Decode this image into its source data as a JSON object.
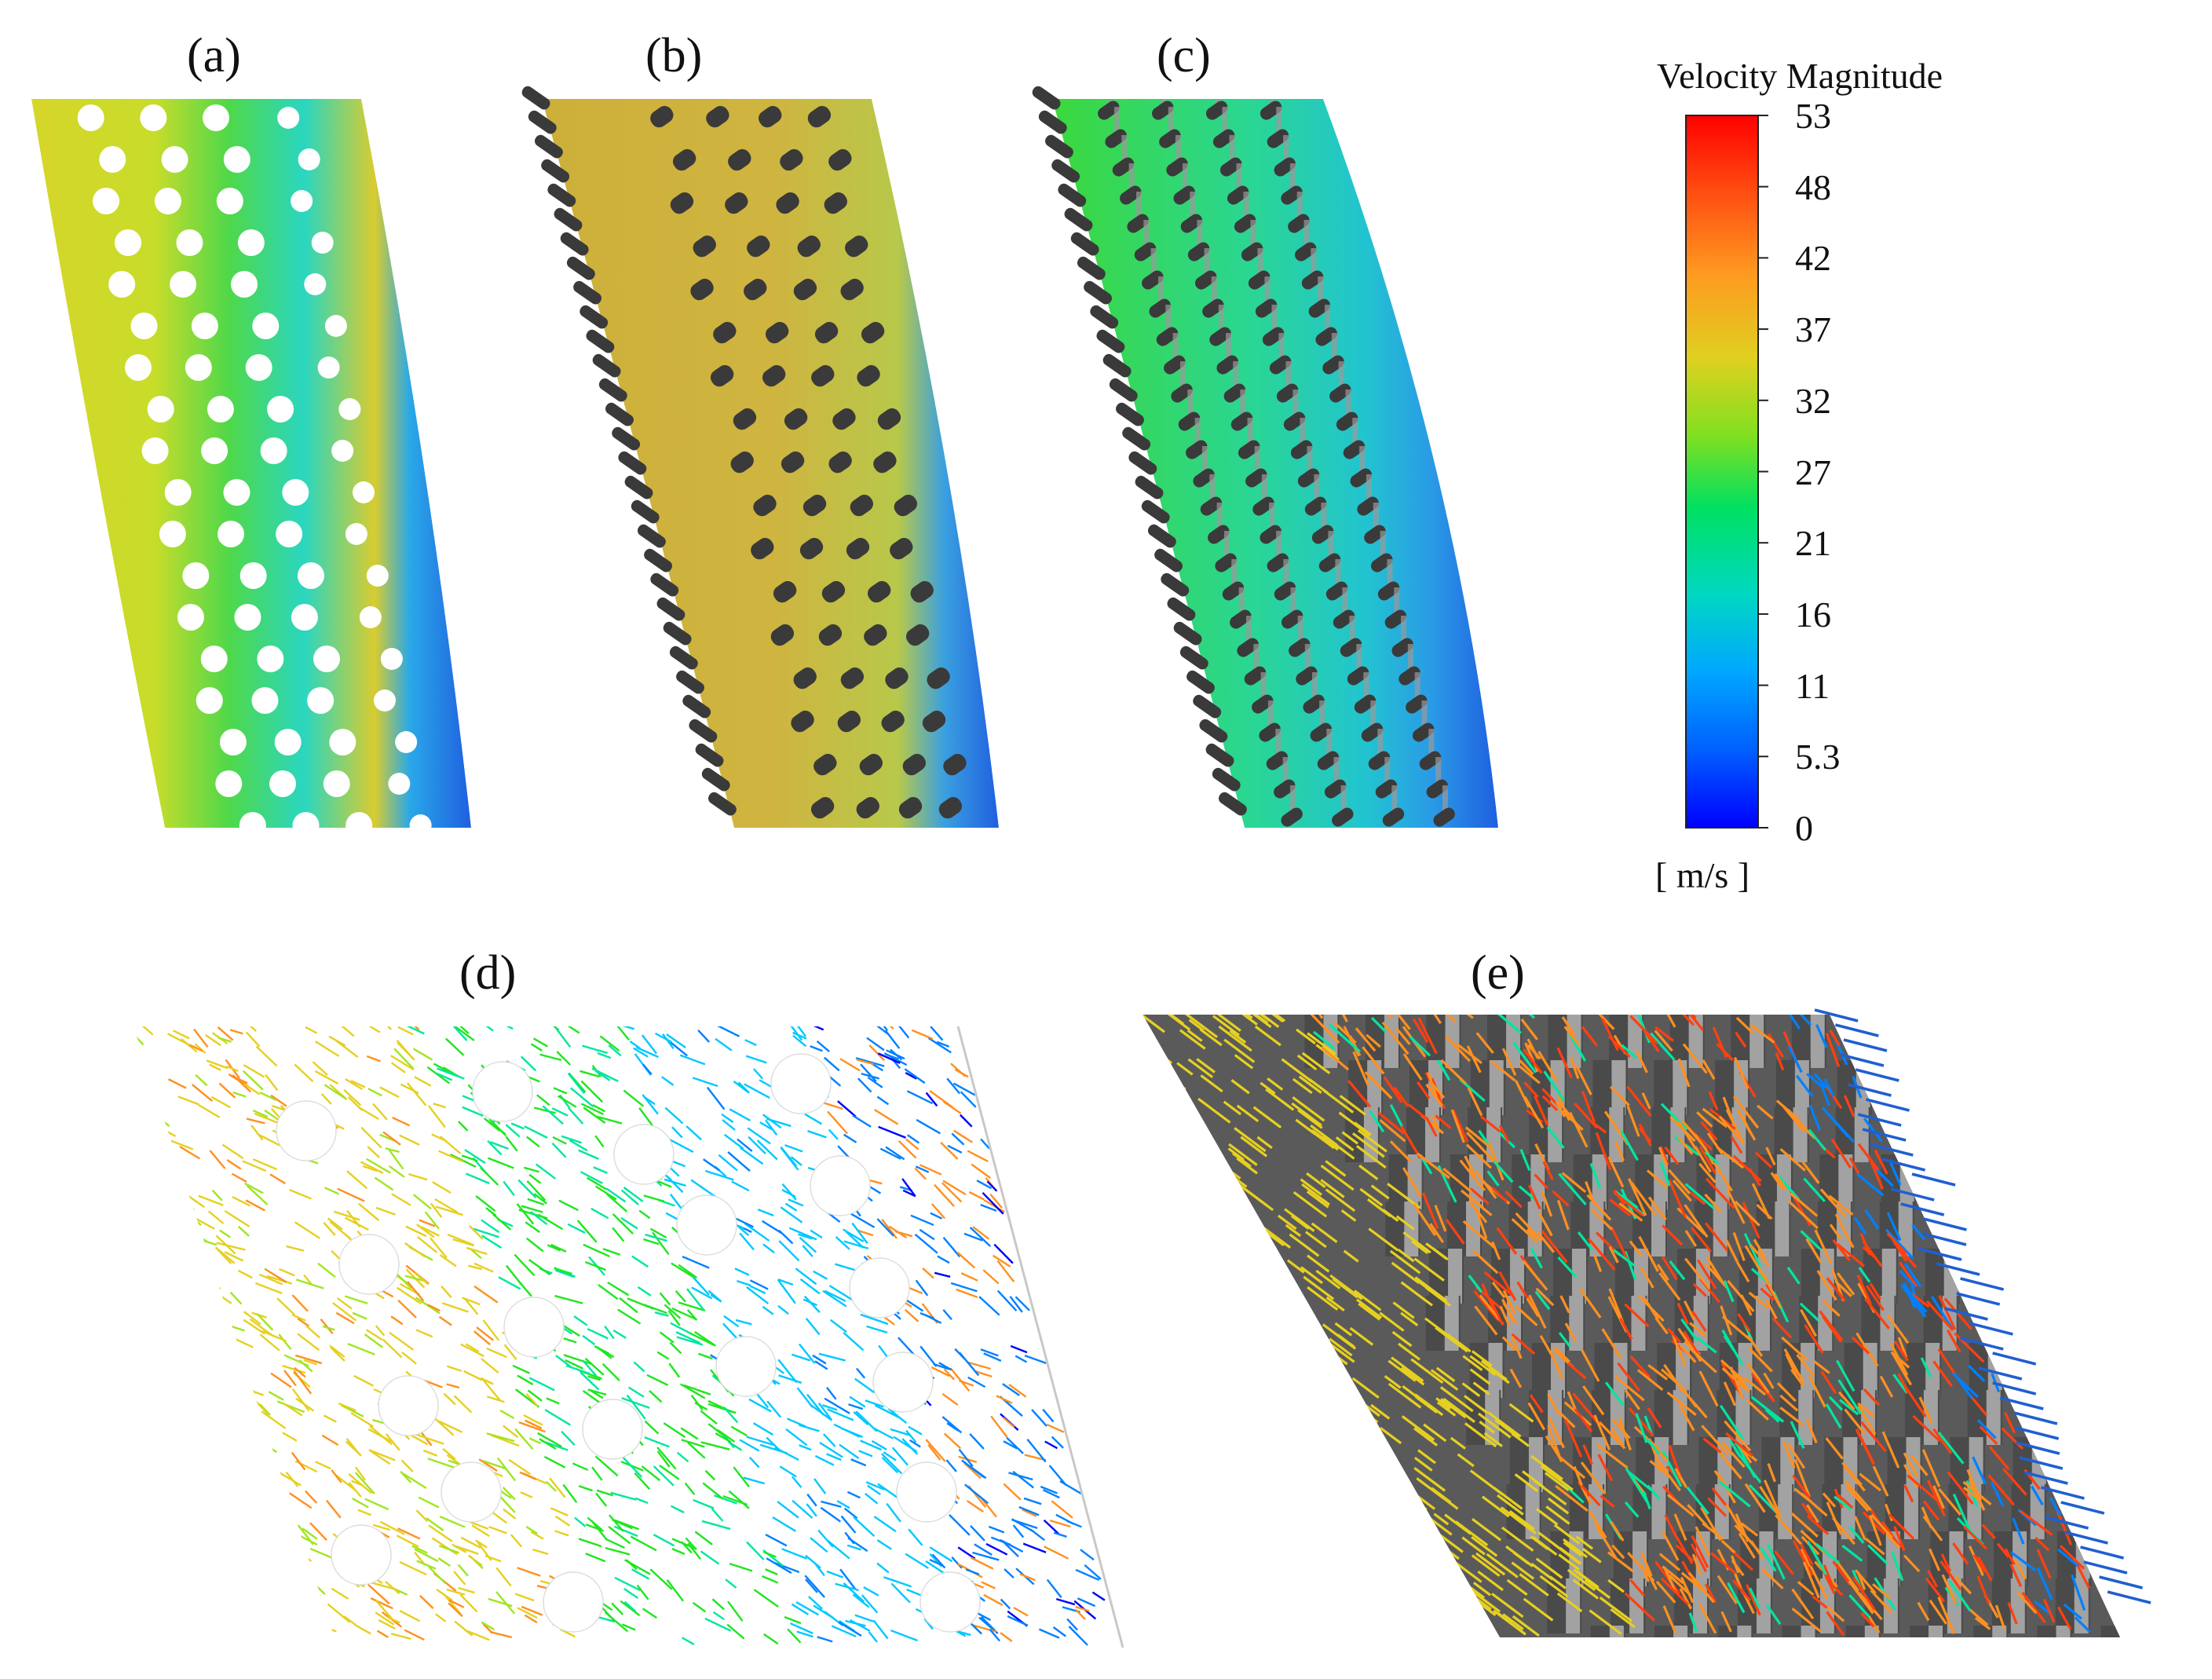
{
  "panels": {
    "a": {
      "label": "(a)"
    },
    "b": {
      "label": "(b)"
    },
    "c": {
      "label": "(c)"
    },
    "d": {
      "label": "(d)"
    },
    "e": {
      "label": "(e)"
    }
  },
  "colorbar": {
    "title": "Velocity Magnitude",
    "unit": "[ m/s ]",
    "ticks": [
      "53",
      "48",
      "42",
      "37",
      "32",
      "27",
      "21",
      "16",
      "11",
      "5.3",
      "0"
    ],
    "min": 0,
    "max": 53,
    "colormap": [
      "#0000ff",
      "#0080ff",
      "#00c8ff",
      "#00e6a0",
      "#1fe61f",
      "#a0e620",
      "#e6d020",
      "#ff9020",
      "#ff4010",
      "#ff0000"
    ]
  },
  "colors": {
    "solid_pin": "#3a3a3a",
    "pin_highlight": "#9a9a9a",
    "background": "#ffffff"
  }
}
